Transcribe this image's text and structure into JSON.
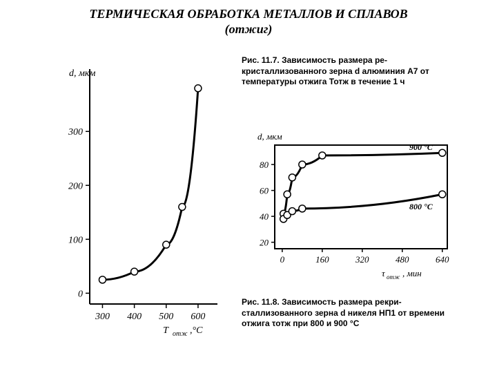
{
  "title_line1": "ТЕРМИЧЕСКАЯ ОБРАБОТКА МЕТАЛЛОВ И СПЛАВОВ",
  "title_line2": "(отжиг)",
  "left_chart": {
    "type": "line",
    "y_label": "d, мкм",
    "y_label_fontstyle": "italic",
    "x_label": "Тотж , °С",
    "x_label_html": "T<sub>отж</sub> , °C",
    "x_ticks": [
      300,
      400,
      500,
      600
    ],
    "y_ticks": [
      0,
      100,
      200,
      300
    ],
    "xlim": [
      260,
      650
    ],
    "ylim": [
      -20,
      390
    ],
    "line_color": "#000000",
    "line_width": 3,
    "marker_style": "open-circle",
    "marker_radius": 5,
    "marker_fill": "#ffffff",
    "marker_stroke": "#000000",
    "background": "#ffffff",
    "frame_color": "#000000",
    "tick_color": "#000000",
    "points": [
      {
        "x": 300,
        "y": 25
      },
      {
        "x": 400,
        "y": 40
      },
      {
        "x": 500,
        "y": 90
      },
      {
        "x": 550,
        "y": 160
      },
      {
        "x": 600,
        "y": 380
      }
    ]
  },
  "right_chart": {
    "type": "line",
    "y_label": "d, мкм",
    "y_label_fontstyle": "italic",
    "x_label": "τотж , мин",
    "x_label_html": "τ<sub>отж</sub> , мин",
    "x_ticks": [
      0,
      160,
      320,
      480,
      640
    ],
    "y_ticks": [
      20,
      40,
      60,
      80
    ],
    "xlim": [
      -30,
      660
    ],
    "ylim": [
      15,
      95
    ],
    "series_labels": {
      "upper": "900 °C",
      "lower": "800 °C"
    },
    "line_color": "#000000",
    "line_width": 3,
    "marker_style": "open-circle",
    "marker_radius": 5,
    "marker_fill": "#ffffff",
    "marker_stroke": "#000000",
    "background": "#ffffff",
    "frame_color": "#000000",
    "series": [
      {
        "name": "900C",
        "points": [
          {
            "x": 5,
            "y": 42
          },
          {
            "x": 20,
            "y": 57
          },
          {
            "x": 40,
            "y": 70
          },
          {
            "x": 80,
            "y": 80
          },
          {
            "x": 160,
            "y": 87
          },
          {
            "x": 640,
            "y": 89
          }
        ]
      },
      {
        "name": "800C",
        "points": [
          {
            "x": 5,
            "y": 38
          },
          {
            "x": 20,
            "y": 41
          },
          {
            "x": 40,
            "y": 44
          },
          {
            "x": 80,
            "y": 46
          },
          {
            "x": 640,
            "y": 57
          }
        ]
      }
    ]
  },
  "caption_top": "Рис. 11.7. Зависимость размера ре­кристаллизованного зерна d алю­миния А7 от температуры отжига Тотж в течение 1 ч",
  "caption_bottom": "Рис. 11.8. Зависимость размера рекри­сталлизованного зерна d никеля НП1 от времени отжига τотж при 800 и 900 °C"
}
